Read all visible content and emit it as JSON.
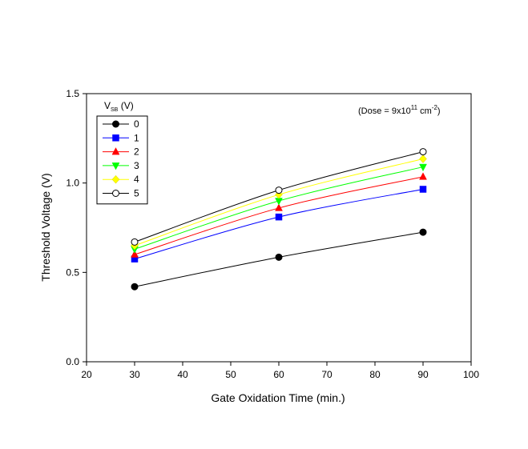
{
  "chart_data": {
    "type": "line",
    "title": "",
    "xlabel": "Gate Oxidation Time (min.)",
    "ylabel": "Threshold Voltage (V)",
    "xlim": [
      20,
      100
    ],
    "ylim": [
      0.0,
      1.5
    ],
    "xticks": [
      "20",
      "30",
      "40",
      "50",
      "60",
      "70",
      "80",
      "90",
      "100"
    ],
    "yticks": [
      "0.0",
      "0.5",
      "1.0",
      "1.5"
    ],
    "grid": false,
    "legend_placement": "top-left",
    "legend_title": {
      "main": "V",
      "sub": "SB",
      "suffix": " (V)"
    },
    "annotation": {
      "prefix": "(Dose = 9x10",
      "exp1": "11",
      "mid": " cm",
      "exp2": "-2",
      "suffix": ")"
    },
    "x": [
      30,
      60,
      90
    ],
    "series": [
      {
        "name": "0",
        "values": [
          0.42,
          0.585,
          0.725
        ],
        "color": "#000000",
        "marker": "circle",
        "filled": true
      },
      {
        "name": "1",
        "values": [
          0.575,
          0.81,
          0.965
        ],
        "color": "#0000ff",
        "marker": "square",
        "filled": true
      },
      {
        "name": "2",
        "values": [
          0.6,
          0.86,
          1.035
        ],
        "color": "#ff0000",
        "marker": "triangle-up",
        "filled": true
      },
      {
        "name": "3",
        "values": [
          0.63,
          0.9,
          1.09
        ],
        "color": "#00ff00",
        "marker": "triangle-down",
        "filled": true
      },
      {
        "name": "4",
        "values": [
          0.65,
          0.935,
          1.135
        ],
        "color": "#ffff00",
        "marker": "diamond",
        "filled": true
      },
      {
        "name": "5",
        "values": [
          0.67,
          0.96,
          1.175
        ],
        "color": "#000000",
        "marker": "circle",
        "filled": false
      }
    ]
  }
}
